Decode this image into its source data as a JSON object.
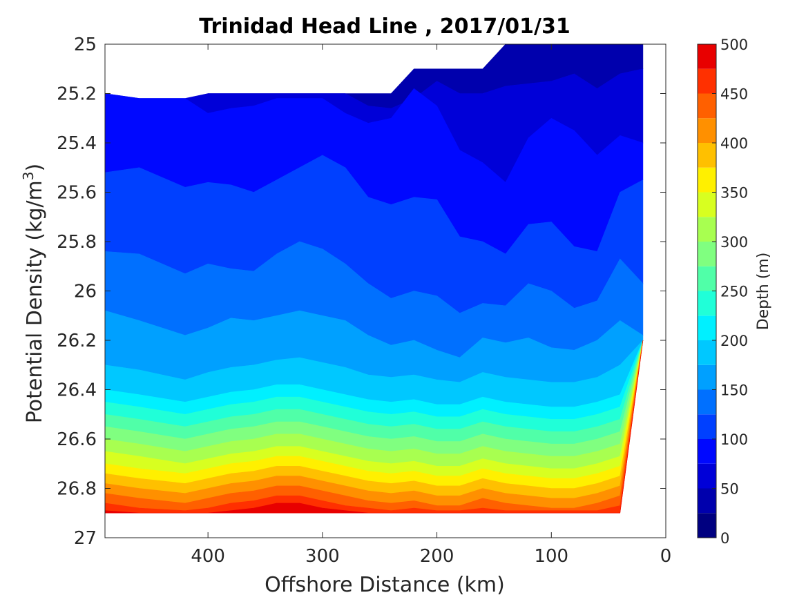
{
  "chart_data": {
    "type": "contour",
    "title": "Trinidad Head Line , 2017/01/31",
    "xlabel": "Offshore Distance (km)",
    "ylabel_main": "Potential Density (kg/m",
    "ylabel_sup": "3",
    "ylabel_close": ")",
    "colorbar_label": "Depth (m)",
    "xlim": [
      490,
      0
    ],
    "xaxis_reversed": true,
    "ylim": [
      25,
      27
    ],
    "yaxis_reversed": true,
    "x_ticks": [
      400,
      300,
      200,
      100,
      0
    ],
    "x_tick_labels": [
      "400",
      "300",
      "200",
      "100",
      "0"
    ],
    "y_ticks": [
      25,
      25.2,
      25.4,
      25.6,
      25.8,
      26,
      26.2,
      26.4,
      26.6,
      26.8,
      27
    ],
    "y_tick_labels": [
      "25",
      "25.2",
      "25.4",
      "25.6",
      "25.8",
      "26",
      "26.2",
      "26.4",
      "26.6",
      "26.8",
      "27"
    ],
    "colorbar_ticks": [
      0,
      50,
      100,
      150,
      200,
      250,
      300,
      350,
      400,
      450,
      500
    ],
    "colorbar_tick_labels": [
      "0",
      "50",
      "100",
      "150",
      "200",
      "250",
      "300",
      "350",
      "400",
      "450",
      "500"
    ],
    "contour_levels": [
      0,
      25,
      50,
      75,
      100,
      125,
      150,
      175,
      200,
      225,
      250,
      275,
      300,
      325,
      350,
      375,
      400,
      425,
      450,
      475,
      500
    ],
    "colormap": "jet",
    "colors": [
      "#000080",
      "#0000ad",
      "#0000d8",
      "#0008ff",
      "#0040ff",
      "#0070ff",
      "#00a0ff",
      "#00c8ff",
      "#00f0ff",
      "#20ffd8",
      "#50ffa8",
      "#80ff80",
      "#a8ff50",
      "#d8ff20",
      "#fff000",
      "#ffc000",
      "#ff9000",
      "#ff6000",
      "#ff3000",
      "#e80000",
      "#b00000"
    ],
    "data_x": [
      490,
      460,
      420,
      400,
      380,
      360,
      340,
      320,
      300,
      280,
      260,
      240,
      220,
      200,
      180,
      160,
      140,
      120,
      100,
      80,
      60,
      40,
      20
    ],
    "data_top_density": [
      25.3,
      25.3,
      25.3,
      25.2,
      25.2,
      25.2,
      25.2,
      25.2,
      25.2,
      25.2,
      25.2,
      25.2,
      25.1,
      25.1,
      25.1,
      25.1,
      25.0,
      25.0,
      25.0,
      25.0,
      25.0,
      25.0,
      25.0
    ],
    "data_bottom_density": [
      26.9,
      26.9,
      26.9,
      26.9,
      26.9,
      26.9,
      26.9,
      26.9,
      26.9,
      26.9,
      26.9,
      26.9,
      26.9,
      26.9,
      26.9,
      26.9,
      26.9,
      26.9,
      26.9,
      26.9,
      26.9,
      26.9,
      26.2
    ],
    "isoline_depth_levels": [
      50,
      75,
      100,
      125,
      150,
      175,
      200,
      225,
      250,
      275,
      300,
      325,
      350,
      375,
      400,
      425,
      450,
      475
    ],
    "isoline_density": [
      [
        25.2,
        25.22,
        25.22,
        25.2,
        25.2,
        25.2,
        25.2,
        25.2,
        25.2,
        25.2,
        25.25,
        25.26,
        25.22,
        25.15,
        25.2,
        25.2,
        25.17,
        25.16,
        25.15,
        25.12,
        25.18,
        25.12,
        25.1
      ],
      [
        25.2,
        25.22,
        25.22,
        25.28,
        25.26,
        25.25,
        25.22,
        25.22,
        25.22,
        25.28,
        25.32,
        25.3,
        25.18,
        25.25,
        25.43,
        25.48,
        25.56,
        25.38,
        25.3,
        25.35,
        25.45,
        25.37,
        25.4
      ],
      [
        25.52,
        25.5,
        25.58,
        25.56,
        25.57,
        25.6,
        25.55,
        25.5,
        25.45,
        25.5,
        25.62,
        25.65,
        25.62,
        25.63,
        25.78,
        25.8,
        25.85,
        25.73,
        25.72,
        25.82,
        25.84,
        25.6,
        25.55
      ],
      [
        25.84,
        25.85,
        25.93,
        25.89,
        25.91,
        25.92,
        25.85,
        25.8,
        25.83,
        25.89,
        25.97,
        26.03,
        26.0,
        26.02,
        26.09,
        26.05,
        26.06,
        25.97,
        26.0,
        26.07,
        26.04,
        25.87,
        25.97
      ],
      [
        26.08,
        26.12,
        26.18,
        26.15,
        26.11,
        26.12,
        26.1,
        26.08,
        26.1,
        26.12,
        26.18,
        26.22,
        26.2,
        26.24,
        26.27,
        26.19,
        26.21,
        26.19,
        26.23,
        26.24,
        26.2,
        26.12,
        26.18
      ],
      [
        26.3,
        26.32,
        26.36,
        26.33,
        26.31,
        26.3,
        26.28,
        26.27,
        26.29,
        26.31,
        26.34,
        26.35,
        26.34,
        26.36,
        26.37,
        26.33,
        26.35,
        26.36,
        26.37,
        26.37,
        26.35,
        26.3,
        26.3
      ],
      [
        26.4,
        26.42,
        26.45,
        26.43,
        26.41,
        26.4,
        26.38,
        26.38,
        26.4,
        26.42,
        26.44,
        26.45,
        26.44,
        26.46,
        26.46,
        26.43,
        26.45,
        26.46,
        26.47,
        26.47,
        26.45,
        26.42,
        26.42
      ],
      [
        26.45,
        26.47,
        26.5,
        26.48,
        26.46,
        26.45,
        26.43,
        26.43,
        26.45,
        26.47,
        26.49,
        26.5,
        26.49,
        26.51,
        26.51,
        26.48,
        26.5,
        26.51,
        26.52,
        26.52,
        26.5,
        26.47,
        26.47
      ],
      [
        26.5,
        26.52,
        26.55,
        26.53,
        26.51,
        26.5,
        26.48,
        26.48,
        26.5,
        26.52,
        26.54,
        26.55,
        26.54,
        26.56,
        26.56,
        26.53,
        26.55,
        26.56,
        26.57,
        26.57,
        26.55,
        26.52,
        26.52
      ],
      [
        26.55,
        26.57,
        26.6,
        26.58,
        26.56,
        26.55,
        26.53,
        26.53,
        26.55,
        26.57,
        26.59,
        26.6,
        26.59,
        26.61,
        26.61,
        26.58,
        26.6,
        26.61,
        26.62,
        26.62,
        26.6,
        26.57,
        26.57
      ],
      [
        26.6,
        26.62,
        26.65,
        26.63,
        26.61,
        26.6,
        26.58,
        26.58,
        26.6,
        26.62,
        26.64,
        26.65,
        26.64,
        26.66,
        26.66,
        26.63,
        26.65,
        26.66,
        26.67,
        26.67,
        26.65,
        26.62,
        26.62
      ],
      [
        26.65,
        26.67,
        26.7,
        26.68,
        26.66,
        26.65,
        26.63,
        26.63,
        26.65,
        26.67,
        26.69,
        26.7,
        26.69,
        26.71,
        26.71,
        26.68,
        26.7,
        26.71,
        26.72,
        26.72,
        26.7,
        26.67,
        26.67
      ],
      [
        26.7,
        26.72,
        26.74,
        26.72,
        26.7,
        26.69,
        26.67,
        26.67,
        26.69,
        26.71,
        26.73,
        26.74,
        26.73,
        26.75,
        26.75,
        26.72,
        26.74,
        26.75,
        26.76,
        26.76,
        26.74,
        26.71,
        26.71
      ],
      [
        26.74,
        26.76,
        26.78,
        26.76,
        26.74,
        26.73,
        26.71,
        26.71,
        26.73,
        26.75,
        26.77,
        26.78,
        26.77,
        26.79,
        26.79,
        26.76,
        26.78,
        26.79,
        26.8,
        26.8,
        26.78,
        26.75,
        26.75
      ],
      [
        26.78,
        26.8,
        26.82,
        26.8,
        26.78,
        26.77,
        26.75,
        26.75,
        26.77,
        26.79,
        26.81,
        26.82,
        26.81,
        26.83,
        26.83,
        26.8,
        26.82,
        26.83,
        26.84,
        26.84,
        26.82,
        26.79,
        26.79
      ],
      [
        26.82,
        26.84,
        26.86,
        26.84,
        26.82,
        26.81,
        26.79,
        26.79,
        26.81,
        26.83,
        26.85,
        26.86,
        26.85,
        26.87,
        26.87,
        26.84,
        26.86,
        26.87,
        26.88,
        26.88,
        26.86,
        26.83,
        26.83
      ],
      [
        26.86,
        26.88,
        26.89,
        26.88,
        26.86,
        26.85,
        26.83,
        26.83,
        26.85,
        26.87,
        26.88,
        26.89,
        26.88,
        26.89,
        26.89,
        26.88,
        26.89,
        26.89,
        26.89,
        26.89,
        26.89,
        26.87,
        26.87
      ],
      [
        26.89,
        26.9,
        26.9,
        26.9,
        26.89,
        26.88,
        26.86,
        26.86,
        26.88,
        26.89,
        26.9,
        26.9,
        26.9,
        26.9,
        26.9,
        26.9,
        26.9,
        26.9,
        26.9,
        26.9,
        26.9,
        26.9,
        26.9
      ]
    ]
  }
}
